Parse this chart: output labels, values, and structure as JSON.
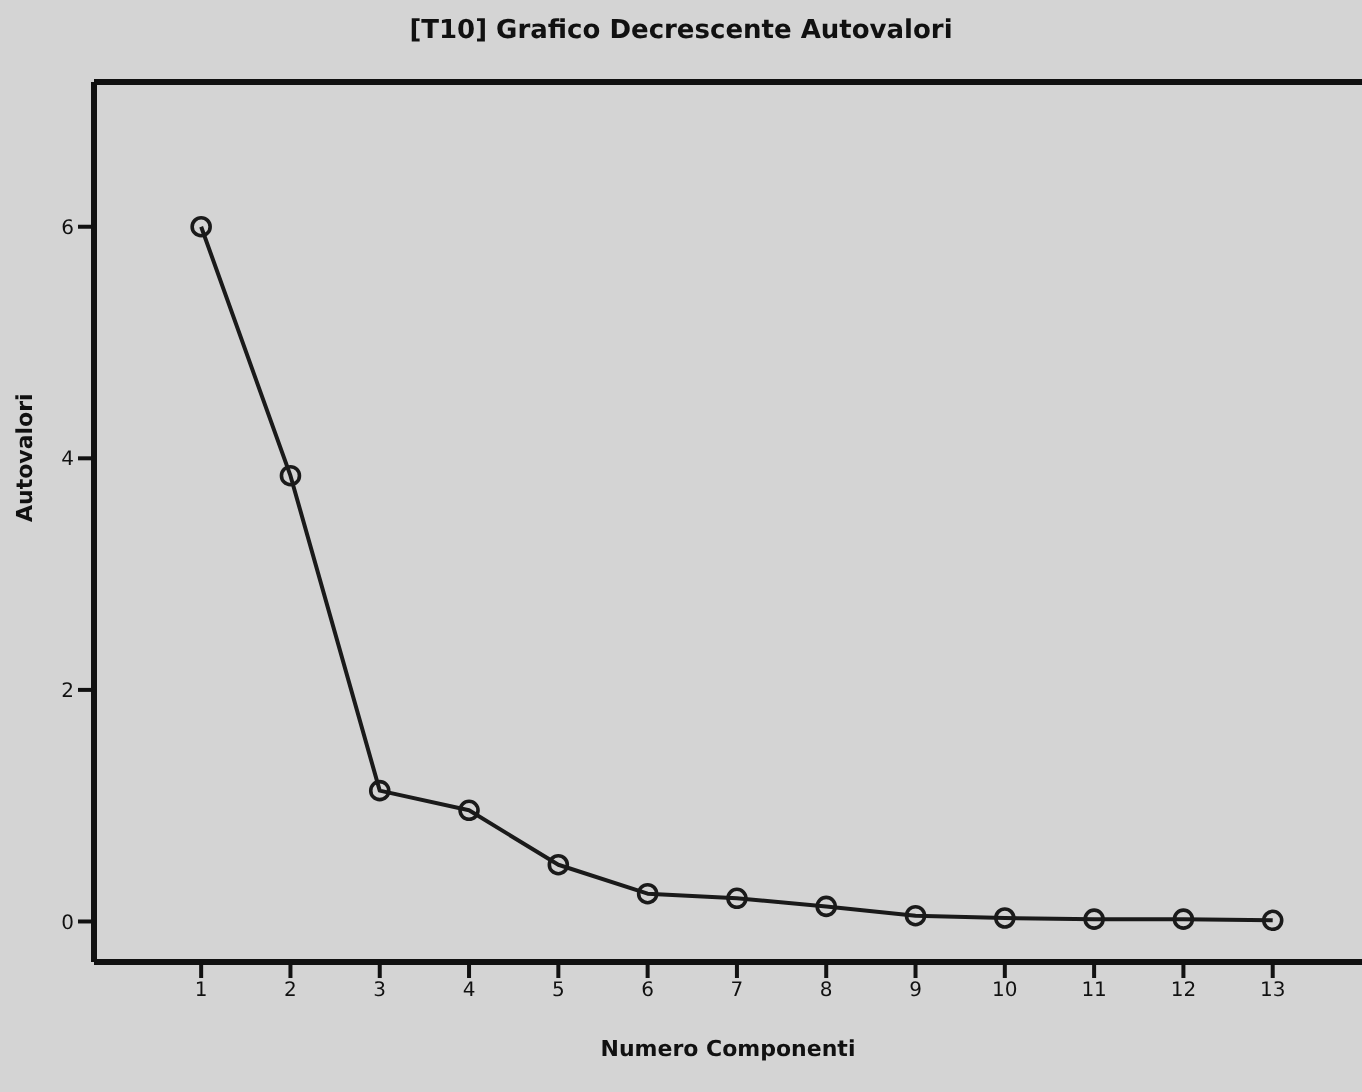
{
  "chart_data": {
    "type": "line",
    "title": "[T10] Grafico Decrescente Autovalori",
    "xlabel": "Numero Componenti",
    "ylabel": "Autovalori",
    "x": [
      1,
      2,
      3,
      4,
      5,
      6,
      7,
      8,
      9,
      10,
      11,
      12,
      13
    ],
    "series": [
      {
        "color": "#1a1a1a",
        "values": [
          6.0,
          3.85,
          1.13,
          0.96,
          0.49,
          0.24,
          0.2,
          0.13,
          0.05,
          0.03,
          0.02,
          0.02,
          0.01
        ]
      }
    ],
    "xlim": [
      -0.2,
      14
    ],
    "xticks": [
      1,
      2,
      3,
      4,
      5,
      6,
      7,
      8,
      9,
      10,
      11,
      12,
      13
    ],
    "ylim": [
      -0.35,
      7.25
    ],
    "yticks": [
      0,
      2,
      4,
      6
    ],
    "marker": "circle",
    "line_style": "solid",
    "grid": false,
    "legend": false
  }
}
